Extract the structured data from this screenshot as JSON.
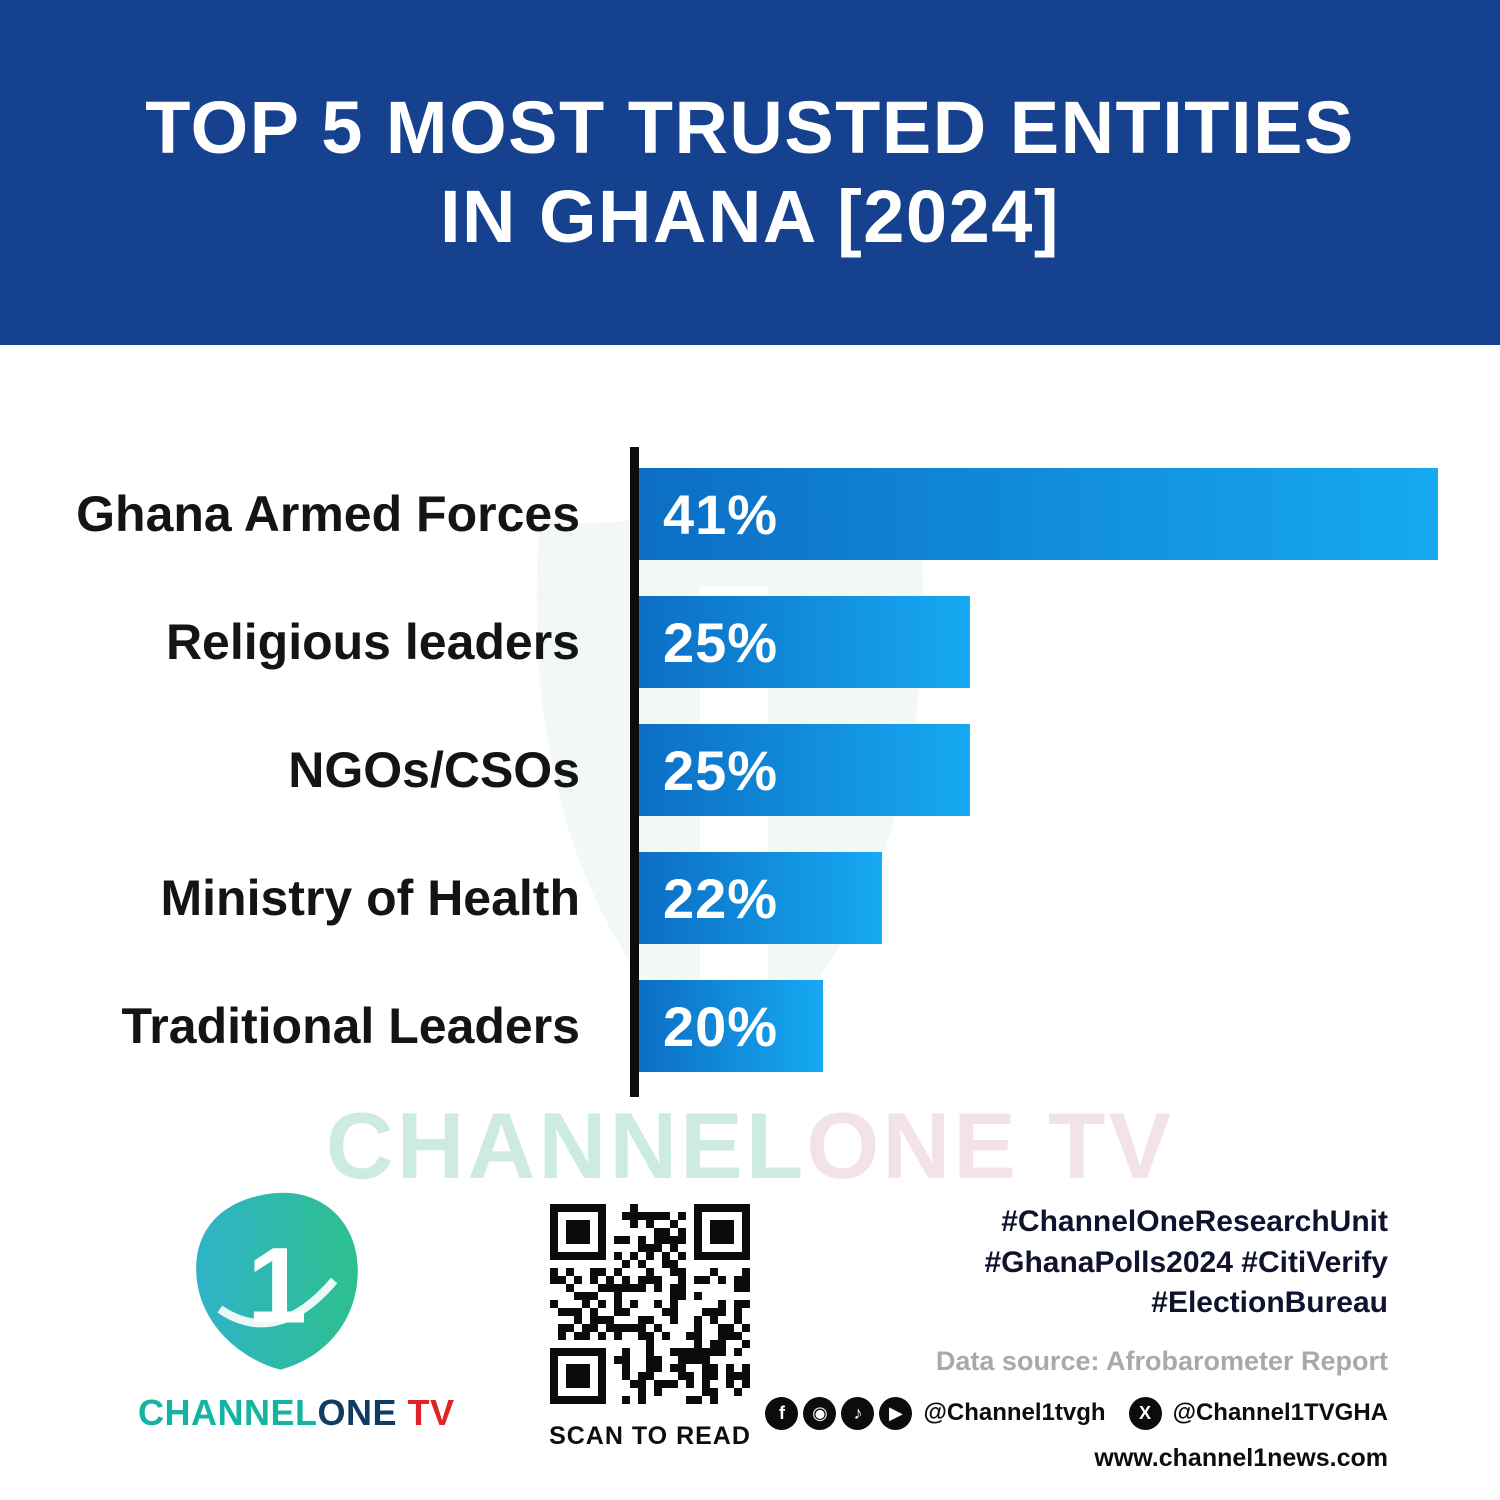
{
  "header": {
    "title_line1": "TOP 5 MOST TRUSTED ENTITIES",
    "title_line2": "IN GHANA [2024]"
  },
  "chart_data": {
    "type": "bar",
    "orientation": "horizontal",
    "title": "Top 5 Most Trusted Entities in Ghana [2024]",
    "categories": [
      "Ghana Armed Forces",
      "Religious leaders",
      "NGOs/CSOs",
      "Ministry of Health",
      "Traditional Leaders"
    ],
    "values": [
      41,
      25,
      25,
      22,
      20
    ],
    "value_labels": [
      "41%",
      "25%",
      "25%",
      "22%",
      "20%"
    ],
    "xlabel": "",
    "ylabel": "",
    "xlim": [
      13.7,
      41
    ],
    "grid": false,
    "legend": false,
    "bar_color_start": "#0c6ec4",
    "bar_color_end": "#16a9f2"
  },
  "watermark": {
    "part1": "CHANNEL",
    "part2": "ONE TV"
  },
  "footer": {
    "brand": {
      "channel": "CHANNEL",
      "one": "ONE",
      "tv": " TV"
    },
    "qr_label": "SCAN TO READ",
    "hashtags": [
      "#ChannelOneResearchUnit",
      "#GhanaPolls2024 #CitiVerify",
      "#ElectionBureau"
    ],
    "data_source": "Data source: Afrobarometer Report",
    "social": {
      "glyphs": [
        "f",
        "◉",
        "♪",
        "▶"
      ],
      "icon_names": [
        "facebook-icon",
        "instagram-icon",
        "tiktok-icon",
        "youtube-icon"
      ],
      "handle_main": "@Channel1tvgh",
      "x_glyph": "X",
      "handle_x": "@Channel1TVGHA"
    },
    "website": "www.channel1news.com"
  },
  "colors": {
    "header_bg": "#15418f",
    "axis": "#0c0c0c",
    "bar_gradient_start": "#0c6ec4",
    "bar_gradient_end": "#16a9f2",
    "brand_teal": "#14b3a2",
    "brand_red": "#e02329"
  }
}
